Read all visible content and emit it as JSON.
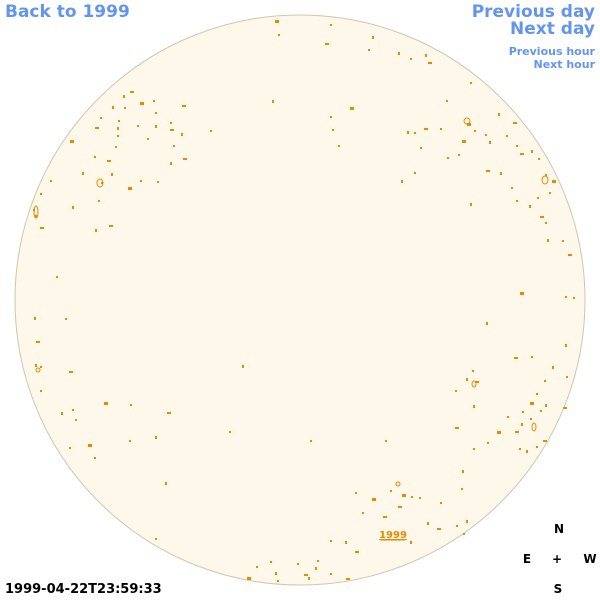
{
  "nav": {
    "back_label": "Back to 1999",
    "prev_day_label": "Previous day",
    "next_day_label": "Next day",
    "prev_hour_label": "Previous hour",
    "next_hour_label": "Next hour"
  },
  "map": {
    "disk_fill": "#fdf8ea",
    "disk_stroke": "#cfc6b0",
    "region_color": "#e68a00",
    "region_label": "1999"
  },
  "compass": {
    "north": "N",
    "east": "E",
    "center": "+",
    "west": "W",
    "south": "S"
  },
  "timestamp": "1999-04-22T23:59:33"
}
